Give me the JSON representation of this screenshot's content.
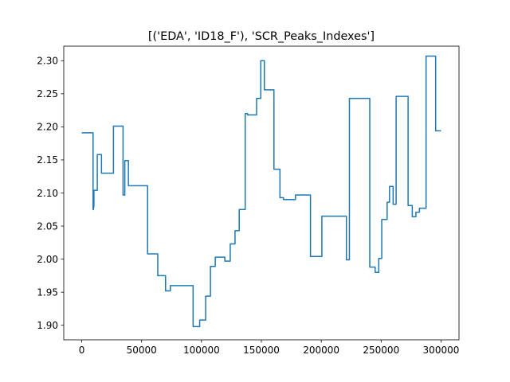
{
  "chart_data": {
    "type": "line",
    "title": "[('EDA', 'ID18_F'), 'SCR_Peaks_Indexes']",
    "xlabel": "",
    "ylabel": "",
    "xlim": [
      -15000,
      315000
    ],
    "ylim": [
      1.878,
      2.322
    ],
    "x_ticks": [
      0,
      50000,
      100000,
      150000,
      200000,
      250000,
      300000
    ],
    "x_tick_labels": [
      "0",
      "50000",
      "100000",
      "150000",
      "200000",
      "250000",
      "300000"
    ],
    "y_ticks": [
      1.9,
      1.95,
      2.0,
      2.05,
      2.1,
      2.15,
      2.2,
      2.25,
      2.3
    ],
    "y_tick_labels": [
      "1.90",
      "1.95",
      "2.00",
      "2.05",
      "2.10",
      "2.15",
      "2.20",
      "2.25",
      "2.30"
    ],
    "grid": false,
    "legend": "none",
    "series": [
      {
        "color": "#1f77b4",
        "x": [
          0,
          9500,
          9500,
          9800,
          9800,
          10200,
          10200,
          13000,
          13000,
          16500,
          16500,
          26500,
          26500,
          34500,
          34500,
          36000,
          36000,
          39000,
          39000,
          55000,
          55000,
          63500,
          63500,
          70000,
          70000,
          74000,
          74000,
          93000,
          93000,
          98500,
          98500,
          103500,
          103500,
          107500,
          107500,
          111500,
          111500,
          119500,
          119500,
          124000,
          124000,
          128000,
          128000,
          131500,
          131500,
          136500,
          136500,
          138500,
          138500,
          146000,
          146000,
          149500,
          149500,
          152500,
          152500,
          160500,
          160500,
          165500,
          165500,
          168500,
          168500,
          178500,
          178500,
          191000,
          191000,
          200500,
          200500,
          221000,
          221000,
          223500,
          223500,
          240500,
          240500,
          245000,
          245000,
          248000,
          248000,
          250500,
          250500,
          255000,
          255000,
          257000,
          257000,
          260000,
          260000,
          262500,
          262500,
          272500,
          272500,
          276000,
          276000,
          279000,
          279000,
          282000,
          282000,
          287500,
          287500,
          295500,
          295500,
          300000
        ],
        "y": [
          2.191,
          2.191,
          2.075,
          2.075,
          2.079,
          2.079,
          2.104,
          2.104,
          2.158,
          2.158,
          2.13,
          2.13,
          2.201,
          2.201,
          2.097,
          2.097,
          2.149,
          2.149,
          2.111,
          2.111,
          2.008,
          2.008,
          1.975,
          1.975,
          1.952,
          1.952,
          1.96,
          1.96,
          1.898,
          1.898,
          1.908,
          1.908,
          1.944,
          1.944,
          1.989,
          1.989,
          2.003,
          2.003,
          1.997,
          1.997,
          2.023,
          2.023,
          2.043,
          2.043,
          2.075,
          2.075,
          2.22,
          2.22,
          2.218,
          2.218,
          2.243,
          2.243,
          2.3,
          2.3,
          2.256,
          2.256,
          2.136,
          2.136,
          2.093,
          2.093,
          2.09,
          2.09,
          2.097,
          2.097,
          2.004,
          2.004,
          2.065,
          2.065,
          1.999,
          1.999,
          2.243,
          2.243,
          1.988,
          1.988,
          1.98,
          1.98,
          2.001,
          2.001,
          2.06,
          2.06,
          2.086,
          2.086,
          2.11,
          2.11,
          2.083,
          2.083,
          2.246,
          2.246,
          2.081,
          2.081,
          2.064,
          2.064,
          2.071,
          2.071,
          2.077,
          2.077,
          2.307,
          2.307,
          2.194,
          2.194
        ]
      }
    ]
  }
}
